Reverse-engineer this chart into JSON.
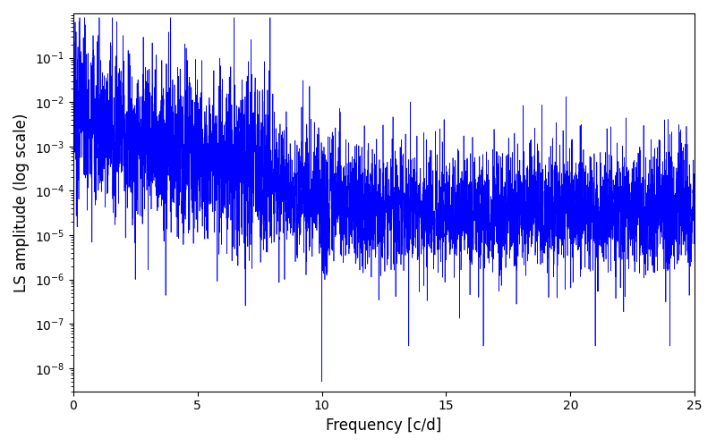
{
  "xlabel": "Frequency [c/d]",
  "ylabel": "LS amplitude (log scale)",
  "xlim": [
    0,
    25
  ],
  "ylim_low": 3e-09,
  "ylim_high": 1.0,
  "yticks": [
    1e-08,
    1e-07,
    1e-06,
    1e-05,
    0.0001,
    0.001,
    0.01,
    0.1
  ],
  "line_color": "#0000ff",
  "linewidth": 0.5,
  "figsize": [
    8.0,
    5.0
  ],
  "dpi": 100,
  "seed": 7,
  "n_points": 5000,
  "freq_max": 25.0
}
